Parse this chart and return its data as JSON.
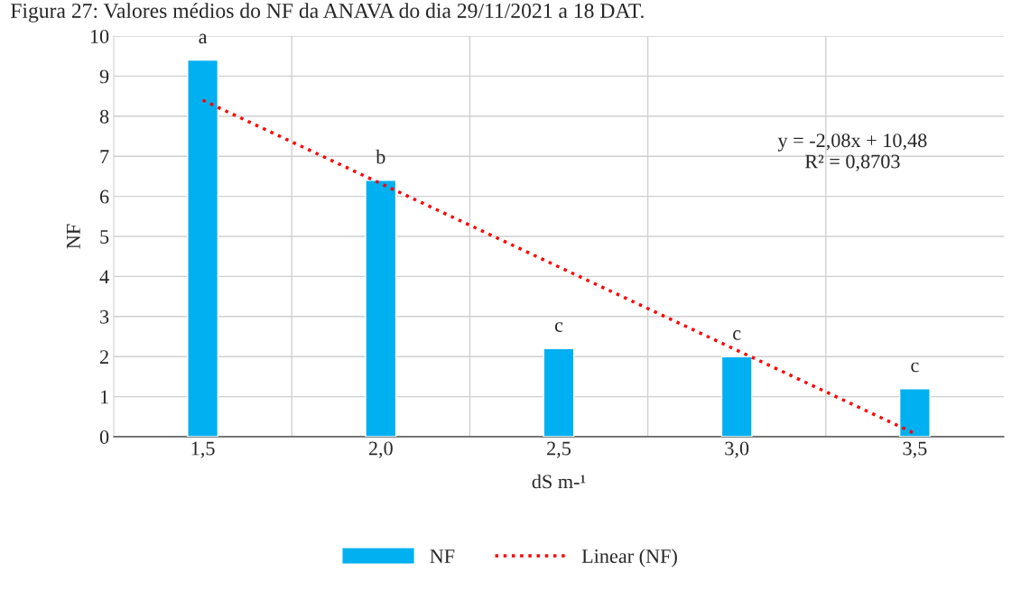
{
  "chart_data": {
    "type": "bar",
    "title": "Figura 27: Valores médios do NF da ANAVA do dia 29/11/2021 a 18 DAT.",
    "categories": [
      "1,5",
      "2,0",
      "2,5",
      "3,0",
      "3,5"
    ],
    "series": [
      {
        "name": "NF",
        "color": "#00b0f0",
        "values": [
          9.4,
          6.4,
          2.2,
          2.0,
          1.2
        ]
      },
      {
        "name": "Linear (NF)",
        "type": "line",
        "color": "#ff0000",
        "line_style": "dotted",
        "x": [
          "1,5",
          "2,0",
          "2,5",
          "3,0",
          "3,5"
        ],
        "values": [
          8.4,
          6.32,
          4.24,
          2.16,
          0.08
        ]
      }
    ],
    "xlabel": "dS m-¹",
    "ylabel": "NF",
    "ylim": [
      0,
      10
    ],
    "yticks": [
      0,
      1,
      2,
      3,
      4,
      5,
      6,
      7,
      8,
      9,
      10
    ],
    "grid": true,
    "legend": "bottom",
    "annotations": [
      {
        "text": "a",
        "x": "1,5",
        "y": 9.4
      },
      {
        "text": "b",
        "x": "2,0",
        "y": 6.4
      },
      {
        "text": "c",
        "x": "2,5",
        "y": 2.2
      },
      {
        "text": "c",
        "x": "3,0",
        "y": 2.0
      },
      {
        "text": "c",
        "x": "3,5",
        "y": 1.2
      },
      "y = -2,08x + 10,48\nR² = 0,8703"
    ]
  }
}
